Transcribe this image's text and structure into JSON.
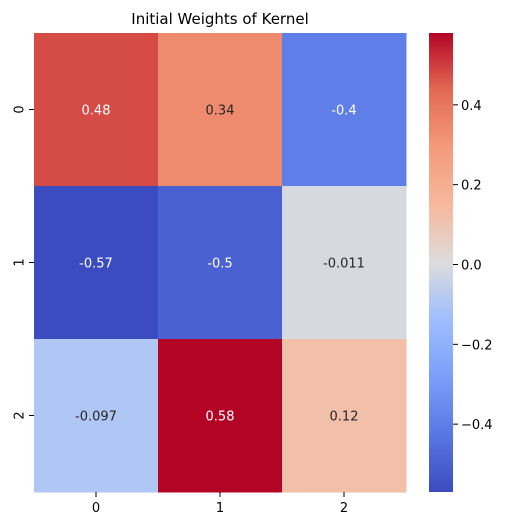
{
  "chart_data": {
    "type": "heatmap",
    "title": "Initial Weights of Kernel",
    "xlabel": "",
    "ylabel": "",
    "x_ticks": [
      "0",
      "1",
      "2"
    ],
    "y_ticks": [
      "0",
      "1",
      "2"
    ],
    "values": [
      [
        0.48,
        0.34,
        -0.4
      ],
      [
        -0.57,
        -0.5,
        -0.011
      ],
      [
        -0.097,
        0.58,
        0.12
      ]
    ],
    "cell_labels": [
      [
        "0.48",
        "0.34",
        "-0.4"
      ],
      [
        "-0.57",
        "-0.5",
        "-0.011"
      ],
      [
        "-0.097",
        "0.58",
        "0.12"
      ]
    ],
    "colormap": "coolwarm",
    "vmin": -0.57,
    "vmax": 0.58,
    "colorbar": {
      "ticks": [
        -0.4,
        -0.2,
        0.0,
        0.2,
        0.4
      ],
      "tick_labels": [
        "−0.4",
        "−0.2",
        "0.0",
        "0.2",
        "0.4"
      ]
    },
    "grid": false,
    "legend": "colorbar-right"
  }
}
